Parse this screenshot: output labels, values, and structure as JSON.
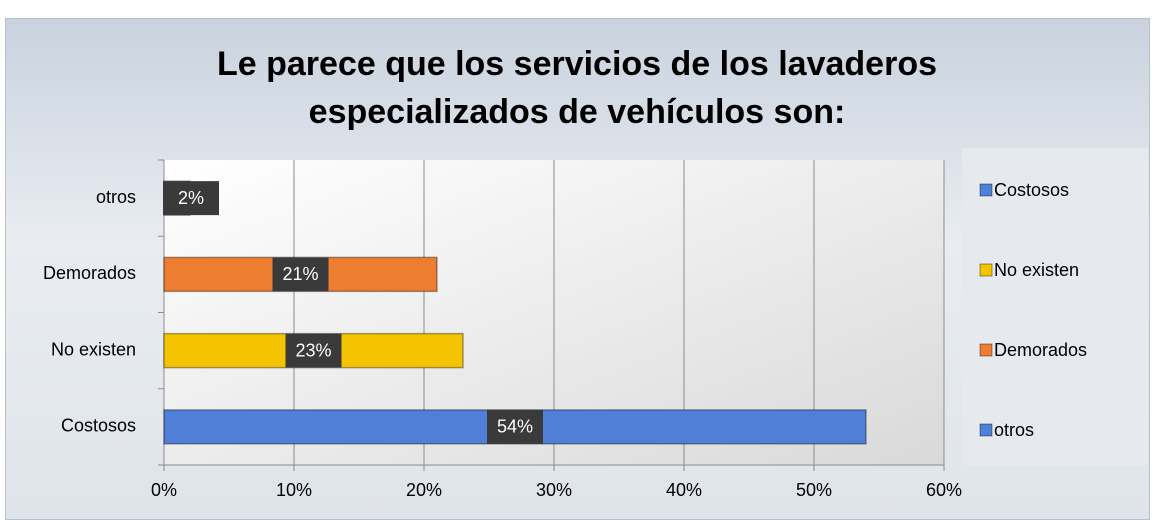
{
  "chart_data": {
    "type": "bar",
    "orientation": "horizontal",
    "title": "Le parece que los servicios de los lavaderos especializados de vehículos son:",
    "categories": [
      "Costosos",
      "No existen",
      "Demorados",
      "otros"
    ],
    "values": [
      54,
      23,
      21,
      2
    ],
    "value_labels": [
      "54%",
      "23%",
      "21%",
      "2%"
    ],
    "colors": [
      "#4f7fd6",
      "#f5c400",
      "#ed7d31",
      "#4f7fd6"
    ],
    "xlim": [
      0,
      60
    ],
    "xticks": [
      {
        "value": 0,
        "label": "0%"
      },
      {
        "value": 10,
        "label": "10%"
      },
      {
        "value": 20,
        "label": "20%"
      },
      {
        "value": 30,
        "label": "30%"
      },
      {
        "value": 40,
        "label": "40%"
      },
      {
        "value": 50,
        "label": "50%"
      },
      {
        "value": 60,
        "label": "60%"
      }
    ],
    "grid": true,
    "legend": "right"
  }
}
